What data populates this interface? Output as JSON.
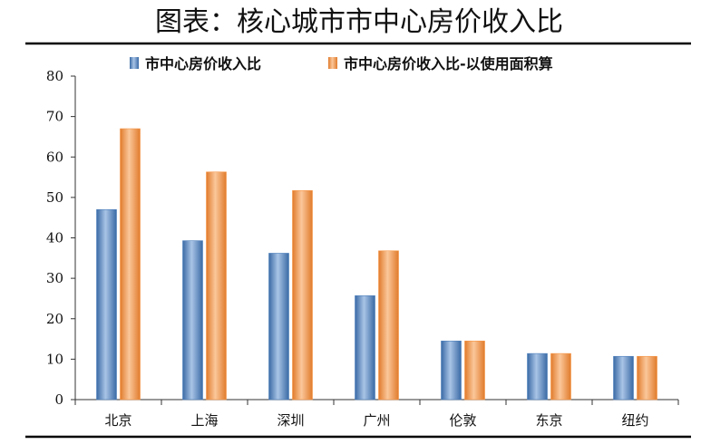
{
  "header": {
    "title": "图表：核心城市市中心房价收入比"
  },
  "colors": {
    "series1": "#4f81bd",
    "series2": "#f79646"
  },
  "chart_data": {
    "type": "bar",
    "categories": [
      "北京",
      "上海",
      "深圳",
      "广州",
      "伦敦",
      "东京",
      "纽约"
    ],
    "series": [
      {
        "name": "市中心房价收入比",
        "values": [
          47,
          39.3,
          36.2,
          25.7,
          14.5,
          11.4,
          10.7
        ]
      },
      {
        "name": "市中心房价收入比-以使用面积算",
        "values": [
          67,
          56.3,
          51.7,
          36.8,
          14.5,
          11.4,
          10.7
        ]
      }
    ],
    "yticks": [
      "0",
      "10",
      "20",
      "30",
      "40",
      "50",
      "60",
      "70",
      "80"
    ],
    "ylim": [
      0,
      80
    ],
    "legend_position": "top",
    "grid": false
  }
}
